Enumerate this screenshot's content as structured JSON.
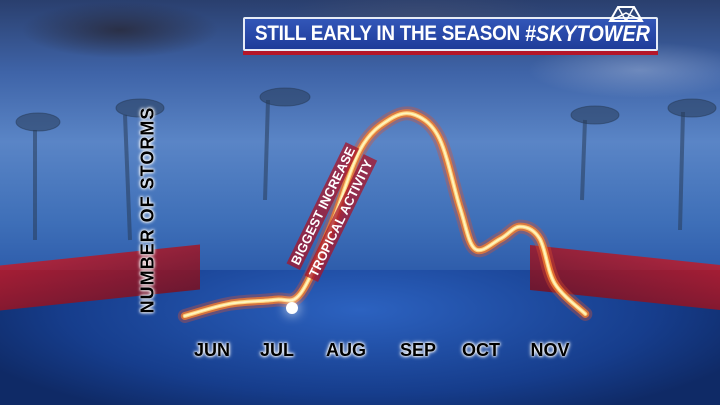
{
  "banner": {
    "title": "STILL EARLY IN THE SEASON",
    "hashtag": "#SKYTOWER"
  },
  "colors": {
    "banner_blue": "#2a4aaa",
    "banner_red": "#b4162a",
    "curve_core": "#fff4c0",
    "curve_glow": "#e0502a"
  },
  "chart_data": {
    "type": "line",
    "title": "STILL EARLY IN THE SEASON",
    "xlabel": "",
    "ylabel": "NUMBER OF STORMS",
    "categories": [
      "JUN",
      "JUL",
      "AUG",
      "SEP",
      "OCT",
      "NOV"
    ],
    "y_ticks": "none",
    "grid": false,
    "series": [
      {
        "points": [
          {
            "x": -0.4,
            "y": 1
          },
          {
            "x": 0.26,
            "y": 7
          },
          {
            "x": 0.93,
            "y": 9
          },
          {
            "x": 1.3,
            "y": 12
          },
          {
            "x": 1.74,
            "y": 44
          },
          {
            "x": 2.18,
            "y": 83
          },
          {
            "x": 2.62,
            "y": 98
          },
          {
            "x": 2.99,
            "y": 100
          },
          {
            "x": 3.35,
            "y": 88
          },
          {
            "x": 3.65,
            "y": 54
          },
          {
            "x": 3.87,
            "y": 34
          },
          {
            "x": 4.24,
            "y": 39
          },
          {
            "x": 4.53,
            "y": 45
          },
          {
            "x": 4.82,
            "y": 39
          },
          {
            "x": 5.04,
            "y": 17
          },
          {
            "x": 5.49,
            "y": 2
          }
        ]
      }
    ],
    "annotations": [
      "BIGGEST INCREASE",
      "TROPICAL ACTIVITY"
    ]
  }
}
